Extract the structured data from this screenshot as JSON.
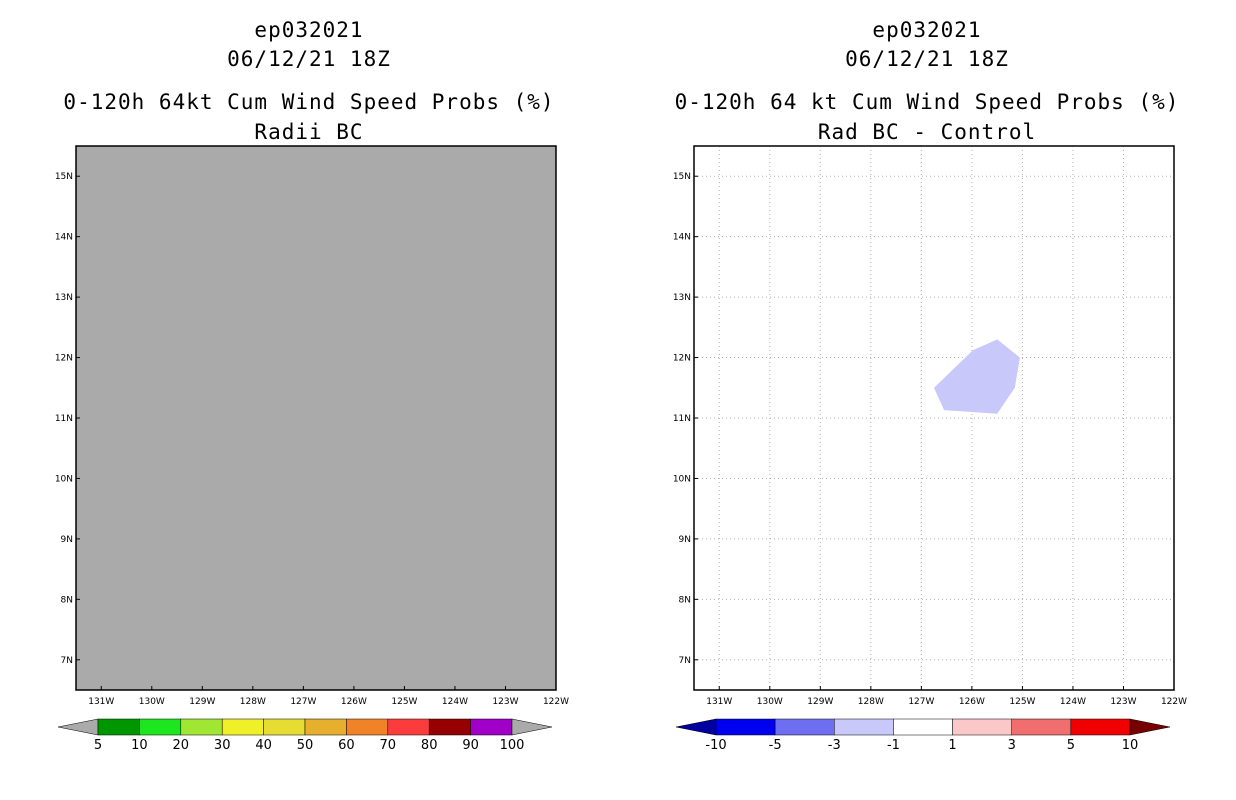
{
  "chart_data": [
    {
      "type": "heatmap",
      "title_lines": [
        "ep032021",
        "06/12/21 18Z",
        "0-120h 64kt Cum Wind Speed Probs (%)",
        "Radii BC"
      ],
      "x_ticks": [
        "131W",
        "130W",
        "129W",
        "128W",
        "127W",
        "126W",
        "125W",
        "124W",
        "123W",
        "122W"
      ],
      "x_tick_values": [
        -131,
        -130,
        -129,
        -128,
        -127,
        -126,
        -125,
        -124,
        -123,
        -122
      ],
      "y_ticks": [
        "7N",
        "8N",
        "9N",
        "10N",
        "11N",
        "12N",
        "13N",
        "14N",
        "15N"
      ],
      "y_tick_values": [
        7,
        8,
        9,
        10,
        11,
        12,
        13,
        14,
        15
      ],
      "xlim": [
        -131.5,
        -122
      ],
      "ylim": [
        6.5,
        15.5
      ],
      "grid": false,
      "field": "all values below lowest contour (grey fill)",
      "fill_color": "#aaaaaa",
      "colorbar": {
        "labels": [
          "5",
          "10",
          "20",
          "30",
          "40",
          "50",
          "60",
          "70",
          "80",
          "90",
          "100"
        ],
        "colors": [
          "#aaaaaa",
          "#009600",
          "#1ee61e",
          "#a0e632",
          "#f0f028",
          "#e6dc32",
          "#e6af2d",
          "#f08228",
          "#fa3c3c",
          "#960000",
          "#a000c8",
          "#aaaaaa"
        ]
      }
    },
    {
      "type": "heatmap",
      "title_lines": [
        "ep032021",
        "06/12/21 18Z",
        "0-120h 64 kt Cum Wind Speed Probs (%)",
        "Rad BC - Control"
      ],
      "x_ticks": [
        "131W",
        "130W",
        "129W",
        "128W",
        "127W",
        "126W",
        "125W",
        "124W",
        "123W",
        "122W"
      ],
      "x_tick_values": [
        -131,
        -130,
        -129,
        -128,
        -127,
        -126,
        -125,
        -124,
        -123,
        -122
      ],
      "y_ticks": [
        "7N",
        "8N",
        "9N",
        "10N",
        "11N",
        "12N",
        "13N",
        "14N",
        "15N"
      ],
      "y_tick_values": [
        7,
        8,
        9,
        10,
        11,
        12,
        13,
        14,
        15
      ],
      "xlim": [
        -131.5,
        -122
      ],
      "ylim": [
        6.5,
        15.5
      ],
      "grid": true,
      "regions": [
        {
          "range": "-3 to -1",
          "color": "#c8c8fa",
          "polygon": [
            [
              -126.75,
              11.5
            ],
            [
              -126.55,
              11.13
            ],
            [
              -125.5,
              11.07
            ],
            [
              -125.15,
              11.5
            ],
            [
              -125.05,
              12.0
            ],
            [
              -125.5,
              12.3
            ],
            [
              -125.98,
              12.12
            ]
          ]
        }
      ],
      "colorbar": {
        "labels": [
          "-10",
          "-5",
          "-3",
          "-1",
          "1",
          "3",
          "5",
          "10"
        ],
        "colors": [
          "#0000a0",
          "#0000f0",
          "#6e6ef0",
          "#c8c8fa",
          "#ffffff",
          "#fac8c8",
          "#f06e6e",
          "#f00000",
          "#780000"
        ]
      }
    }
  ]
}
